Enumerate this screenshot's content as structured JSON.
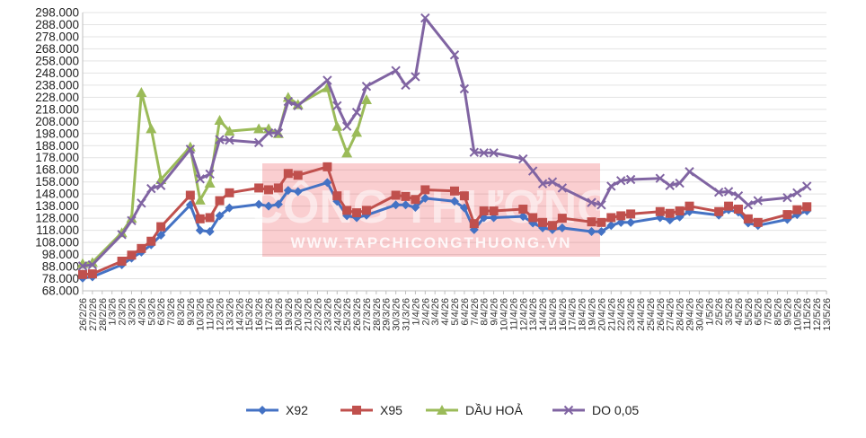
{
  "chart_data": {
    "type": "line",
    "title": "",
    "xlabel": "",
    "ylabel": "",
    "ylim": [
      68000,
      298000
    ],
    "yticks": [
      "68.000",
      "78.000",
      "88.000",
      "98.000",
      "108.000",
      "118.000",
      "128.000",
      "138.000",
      "148.000",
      "158.000",
      "168.000",
      "178.000",
      "188.000",
      "198.000",
      "208.000",
      "218.000",
      "228.000",
      "238.000",
      "248.000",
      "258.000",
      "268.000",
      "278.000",
      "288.000",
      "298.000"
    ],
    "grid": true,
    "legend_position": "bottom",
    "x": [
      "26/2/26",
      "27/2/26",
      "28/2/26",
      "1/3/26",
      "2/3/26",
      "3/3/26",
      "4/3/26",
      "5/3/26",
      "6/3/26",
      "7/3/26",
      "8/3/26",
      "9/3/26",
      "10/3/26",
      "11/3/26",
      "12/3/26",
      "13/3/26",
      "14/3/26",
      "15/3/26",
      "16/3/26",
      "17/3/26",
      "18/3/26",
      "19/3/26",
      "20/3/26",
      "21/3/26",
      "22/3/26",
      "23/3/26",
      "24/3/26",
      "25/3/26",
      "26/3/26",
      "27/3/26",
      "28/3/26",
      "29/3/26",
      "30/3/26",
      "31/3/26",
      "1/4/26",
      "2/4/26",
      "3/4/26",
      "4/4/26",
      "5/4/26",
      "6/4/26",
      "7/4/26",
      "8/4/26",
      "9/4/26",
      "10/4/26",
      "11/4/26",
      "12/4/26",
      "13/4/26",
      "14/4/26",
      "15/4/26",
      "16/4/26",
      "17/4/26",
      "18/4/26",
      "19/4/26",
      "20/4/26",
      "21/4/26",
      "22/4/26",
      "23/4/26",
      "24/4/26",
      "25/4/26",
      "26/4/26",
      "27/4/26",
      "28/4/26",
      "29/4/26",
      "30/4/26",
      "1/5/26",
      "2/5/26",
      "3/5/26",
      "4/5/26",
      "5/5/26",
      "6/5/26",
      "7/5/26",
      "8/5/26",
      "9/5/26",
      "10/5/26",
      "11/5/26",
      "12/5/26",
      "13/5/26"
    ],
    "series": [
      {
        "name": "X92",
        "color": "#4472C4",
        "marker": "diamond",
        "points": [
          [
            0,
            78500
          ],
          [
            1,
            79500
          ],
          [
            4,
            89500
          ],
          [
            5,
            95000
          ],
          [
            6,
            100000
          ],
          [
            7,
            106000
          ],
          [
            8,
            114000
          ],
          [
            11,
            139000
          ],
          [
            12,
            118000
          ],
          [
            13,
            117000
          ],
          [
            14,
            130000
          ],
          [
            15,
            136500
          ],
          [
            18,
            139500
          ],
          [
            19,
            138000
          ],
          [
            20,
            139500
          ],
          [
            21,
            151000
          ],
          [
            22,
            150000
          ],
          [
            25,
            157500
          ],
          [
            26,
            142000
          ],
          [
            27,
            130000
          ],
          [
            28,
            128500
          ],
          [
            29,
            130500
          ],
          [
            32,
            139000
          ],
          [
            33,
            139000
          ],
          [
            34,
            137000
          ],
          [
            35,
            144500
          ],
          [
            38,
            142000
          ],
          [
            39,
            136500
          ],
          [
            40,
            118500
          ],
          [
            41,
            128500
          ],
          [
            42,
            128500
          ],
          [
            45,
            129500
          ],
          [
            46,
            124000
          ],
          [
            47,
            120000
          ],
          [
            48,
            118500
          ],
          [
            49,
            120000
          ],
          [
            52,
            117000
          ],
          [
            53,
            117000
          ],
          [
            54,
            122000
          ],
          [
            55,
            124500
          ],
          [
            56,
            124500
          ],
          [
            59,
            128500
          ],
          [
            60,
            126500
          ],
          [
            61,
            129000
          ],
          [
            62,
            133500
          ],
          [
            65,
            130500
          ],
          [
            66,
            135000
          ],
          [
            67,
            133000
          ],
          [
            68,
            124000
          ],
          [
            69,
            122000
          ],
          [
            72,
            127000
          ],
          [
            73,
            131000
          ],
          [
            74,
            134000
          ]
        ]
      },
      {
        "name": "X95",
        "color": "#C0504D",
        "marker": "square",
        "points": [
          [
            0,
            81500
          ],
          [
            1,
            82000
          ],
          [
            4,
            92500
          ],
          [
            5,
            97500
          ],
          [
            6,
            103000
          ],
          [
            7,
            109000
          ],
          [
            8,
            121000
          ],
          [
            11,
            147000
          ],
          [
            12,
            127500
          ],
          [
            13,
            128500
          ],
          [
            14,
            142500
          ],
          [
            15,
            149000
          ],
          [
            18,
            153000
          ],
          [
            19,
            151500
          ],
          [
            20,
            153000
          ],
          [
            21,
            165000
          ],
          [
            22,
            163500
          ],
          [
            25,
            170500
          ],
          [
            26,
            146500
          ],
          [
            27,
            134500
          ],
          [
            28,
            132500
          ],
          [
            29,
            134500
          ],
          [
            32,
            147000
          ],
          [
            33,
            146000
          ],
          [
            34,
            143500
          ],
          [
            35,
            151500
          ],
          [
            38,
            150500
          ],
          [
            39,
            146500
          ],
          [
            40,
            123500
          ],
          [
            41,
            134000
          ],
          [
            42,
            134000
          ],
          [
            45,
            135500
          ],
          [
            46,
            128500
          ],
          [
            47,
            124500
          ],
          [
            48,
            122000
          ],
          [
            49,
            128000
          ],
          [
            52,
            125000
          ],
          [
            53,
            124500
          ],
          [
            54,
            128500
          ],
          [
            55,
            130000
          ],
          [
            56,
            131500
          ],
          [
            59,
            133500
          ],
          [
            60,
            132000
          ],
          [
            61,
            134000
          ],
          [
            62,
            138000
          ],
          [
            65,
            133500
          ],
          [
            66,
            138000
          ],
          [
            67,
            135500
          ],
          [
            68,
            127500
          ],
          [
            69,
            124500
          ],
          [
            72,
            131000
          ],
          [
            73,
            135000
          ],
          [
            74,
            137500
          ]
        ]
      },
      {
        "name": "DẦU HOẢ",
        "color": "#9BBB59",
        "marker": "triangle",
        "points": [
          [
            0,
            90500
          ],
          [
            1,
            91500
          ],
          [
            4,
            116000
          ],
          [
            5,
            128000
          ],
          [
            6,
            232000
          ],
          [
            7,
            202000
          ],
          [
            8,
            160000
          ],
          [
            11,
            187000
          ],
          [
            12,
            143000
          ],
          [
            13,
            157000
          ],
          [
            14,
            209000
          ],
          [
            15,
            200000
          ],
          [
            18,
            202000
          ],
          [
            19,
            202000
          ],
          [
            20,
            198000
          ],
          [
            21,
            228000
          ],
          [
            22,
            222000
          ],
          [
            25,
            236000
          ],
          [
            26,
            204000
          ],
          [
            27,
            182000
          ],
          [
            28,
            199000
          ],
          [
            29,
            226000
          ]
        ]
      },
      {
        "name": "DO 0,05",
        "color": "#8064A2",
        "marker": "x",
        "points": [
          [
            0,
            88500
          ],
          [
            1,
            89500
          ],
          [
            4,
            114500
          ],
          [
            5,
            126000
          ],
          [
            6,
            140500
          ],
          [
            7,
            152500
          ],
          [
            8,
            155000
          ],
          [
            11,
            185000
          ],
          [
            12,
            160500
          ],
          [
            13,
            164500
          ],
          [
            14,
            193000
          ],
          [
            15,
            192500
          ],
          [
            18,
            190500
          ],
          [
            19,
            198500
          ],
          [
            20,
            198500
          ],
          [
            21,
            224500
          ],
          [
            22,
            221000
          ],
          [
            25,
            242000
          ],
          [
            26,
            221000
          ],
          [
            27,
            204000
          ],
          [
            28,
            215500
          ],
          [
            29,
            237000
          ],
          [
            32,
            250000
          ],
          [
            33,
            238000
          ],
          [
            34,
            245000
          ],
          [
            35,
            293500
          ],
          [
            38,
            263000
          ],
          [
            39,
            235000
          ],
          [
            40,
            182500
          ],
          [
            41,
            182000
          ],
          [
            42,
            182000
          ],
          [
            45,
            177000
          ],
          [
            46,
            167000
          ],
          [
            47,
            156500
          ],
          [
            48,
            158000
          ],
          [
            49,
            153000
          ],
          [
            52,
            141000
          ],
          [
            53,
            139000
          ],
          [
            54,
            154500
          ],
          [
            55,
            159000
          ],
          [
            56,
            160000
          ],
          [
            59,
            161000
          ],
          [
            60,
            155000
          ],
          [
            61,
            157000
          ],
          [
            62,
            166500
          ],
          [
            65,
            149500
          ],
          [
            66,
            150000
          ],
          [
            67,
            146500
          ],
          [
            68,
            139000
          ],
          [
            69,
            142500
          ],
          [
            72,
            145000
          ],
          [
            73,
            149000
          ],
          [
            74,
            154500
          ]
        ]
      }
    ],
    "watermark": {
      "title": "CÔNG THƯƠNG",
      "url": "WWW.TAPCHICONGTHUONG.VN"
    }
  }
}
